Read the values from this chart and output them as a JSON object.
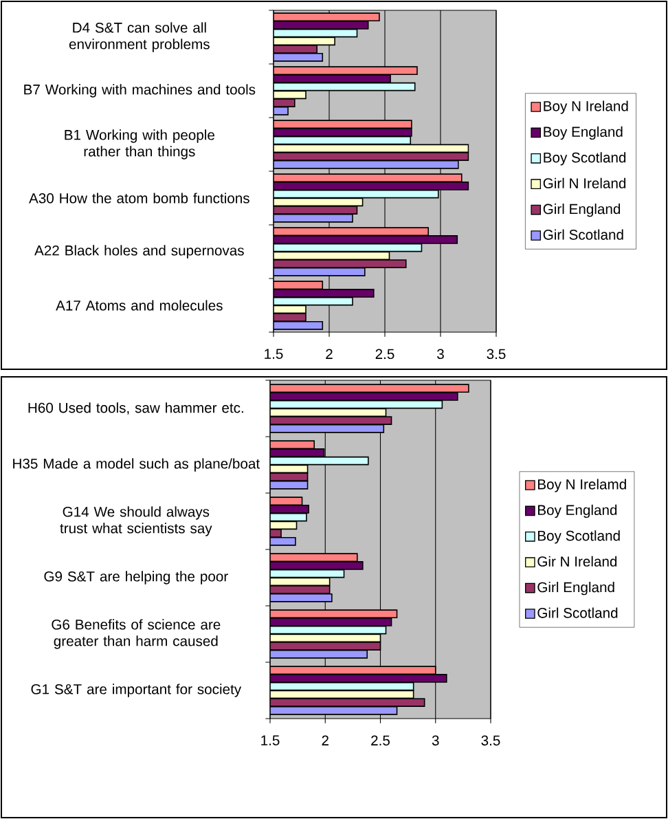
{
  "chart_data": [
    {
      "type": "bar",
      "orientation": "horizontal",
      "categories": [
        "D4 S&T can solve all environment problems",
        "B7 Working with machines and tools",
        "B1 Working with people rather than things",
        "A30 How the atom bomb functions",
        "A22 Black holes and supernovas",
        "A17 Atoms and molecules"
      ],
      "series": [
        {
          "name": "Boy N Ireland",
          "color": "#ff8080",
          "values": [
            2.45,
            2.79,
            2.74,
            3.19,
            2.89,
            1.94
          ]
        },
        {
          "name": "Boy England",
          "color": "#660066",
          "values": [
            2.35,
            2.55,
            2.74,
            3.25,
            3.15,
            2.4
          ]
        },
        {
          "name": "Boy Scotland",
          "color": "#ccffff",
          "values": [
            2.25,
            2.77,
            2.73,
            2.98,
            2.83,
            2.21
          ]
        },
        {
          "name": "Girl N Ireland",
          "color": "#ffffcc",
          "values": [
            2.05,
            1.79,
            3.25,
            2.3,
            2.54,
            1.79
          ]
        },
        {
          "name": "Girl England",
          "color": "#993366",
          "values": [
            1.89,
            1.69,
            3.25,
            2.25,
            2.69,
            1.79
          ]
        },
        {
          "name": "Girl Scotland",
          "color": "#9999ff",
          "values": [
            1.94,
            1.63,
            3.16,
            2.21,
            2.32,
            1.94
          ]
        }
      ],
      "xlim": [
        1.5,
        3.5
      ],
      "xticks": [
        1.5,
        2,
        2.5,
        3,
        3.5
      ],
      "grid": "x",
      "legend": "right"
    },
    {
      "type": "bar",
      "orientation": "horizontal",
      "categories": [
        "H60 Used tools, saw hammer etc.",
        "H35 Made a model such as plane/boat",
        "G14 We should always trust what scientists say",
        "G9 S&T are helping the poor",
        "G6 Benefits of science are greater than harm caused",
        "G1 S&T are important for society"
      ],
      "series": [
        {
          "name": "Boy N Irelamd",
          "color": "#ff8080",
          "values": [
            3.3,
            1.9,
            1.79,
            2.29,
            2.65,
            3.0
          ]
        },
        {
          "name": "Boy England",
          "color": "#660066",
          "values": [
            3.2,
            1.99,
            1.85,
            2.34,
            2.6,
            3.1
          ]
        },
        {
          "name": "Boy Scotland",
          "color": "#ccffff",
          "values": [
            3.06,
            2.39,
            1.83,
            2.17,
            2.55,
            2.8
          ]
        },
        {
          "name": "Gir N Ireland",
          "color": "#ffffcc",
          "values": [
            2.55,
            1.84,
            1.74,
            2.04,
            2.5,
            2.8
          ]
        },
        {
          "name": "Girl England",
          "color": "#993366",
          "values": [
            2.6,
            1.84,
            1.6,
            2.04,
            2.5,
            2.9
          ]
        },
        {
          "name": "Girl Scotland",
          "color": "#9999ff",
          "values": [
            2.53,
            1.84,
            1.73,
            2.06,
            2.38,
            2.65
          ]
        }
      ],
      "xlim": [
        1.5,
        3.5
      ],
      "xticks": [
        1.5,
        2,
        2.5,
        3,
        3.5
      ],
      "grid": "x",
      "legend": "right"
    }
  ]
}
